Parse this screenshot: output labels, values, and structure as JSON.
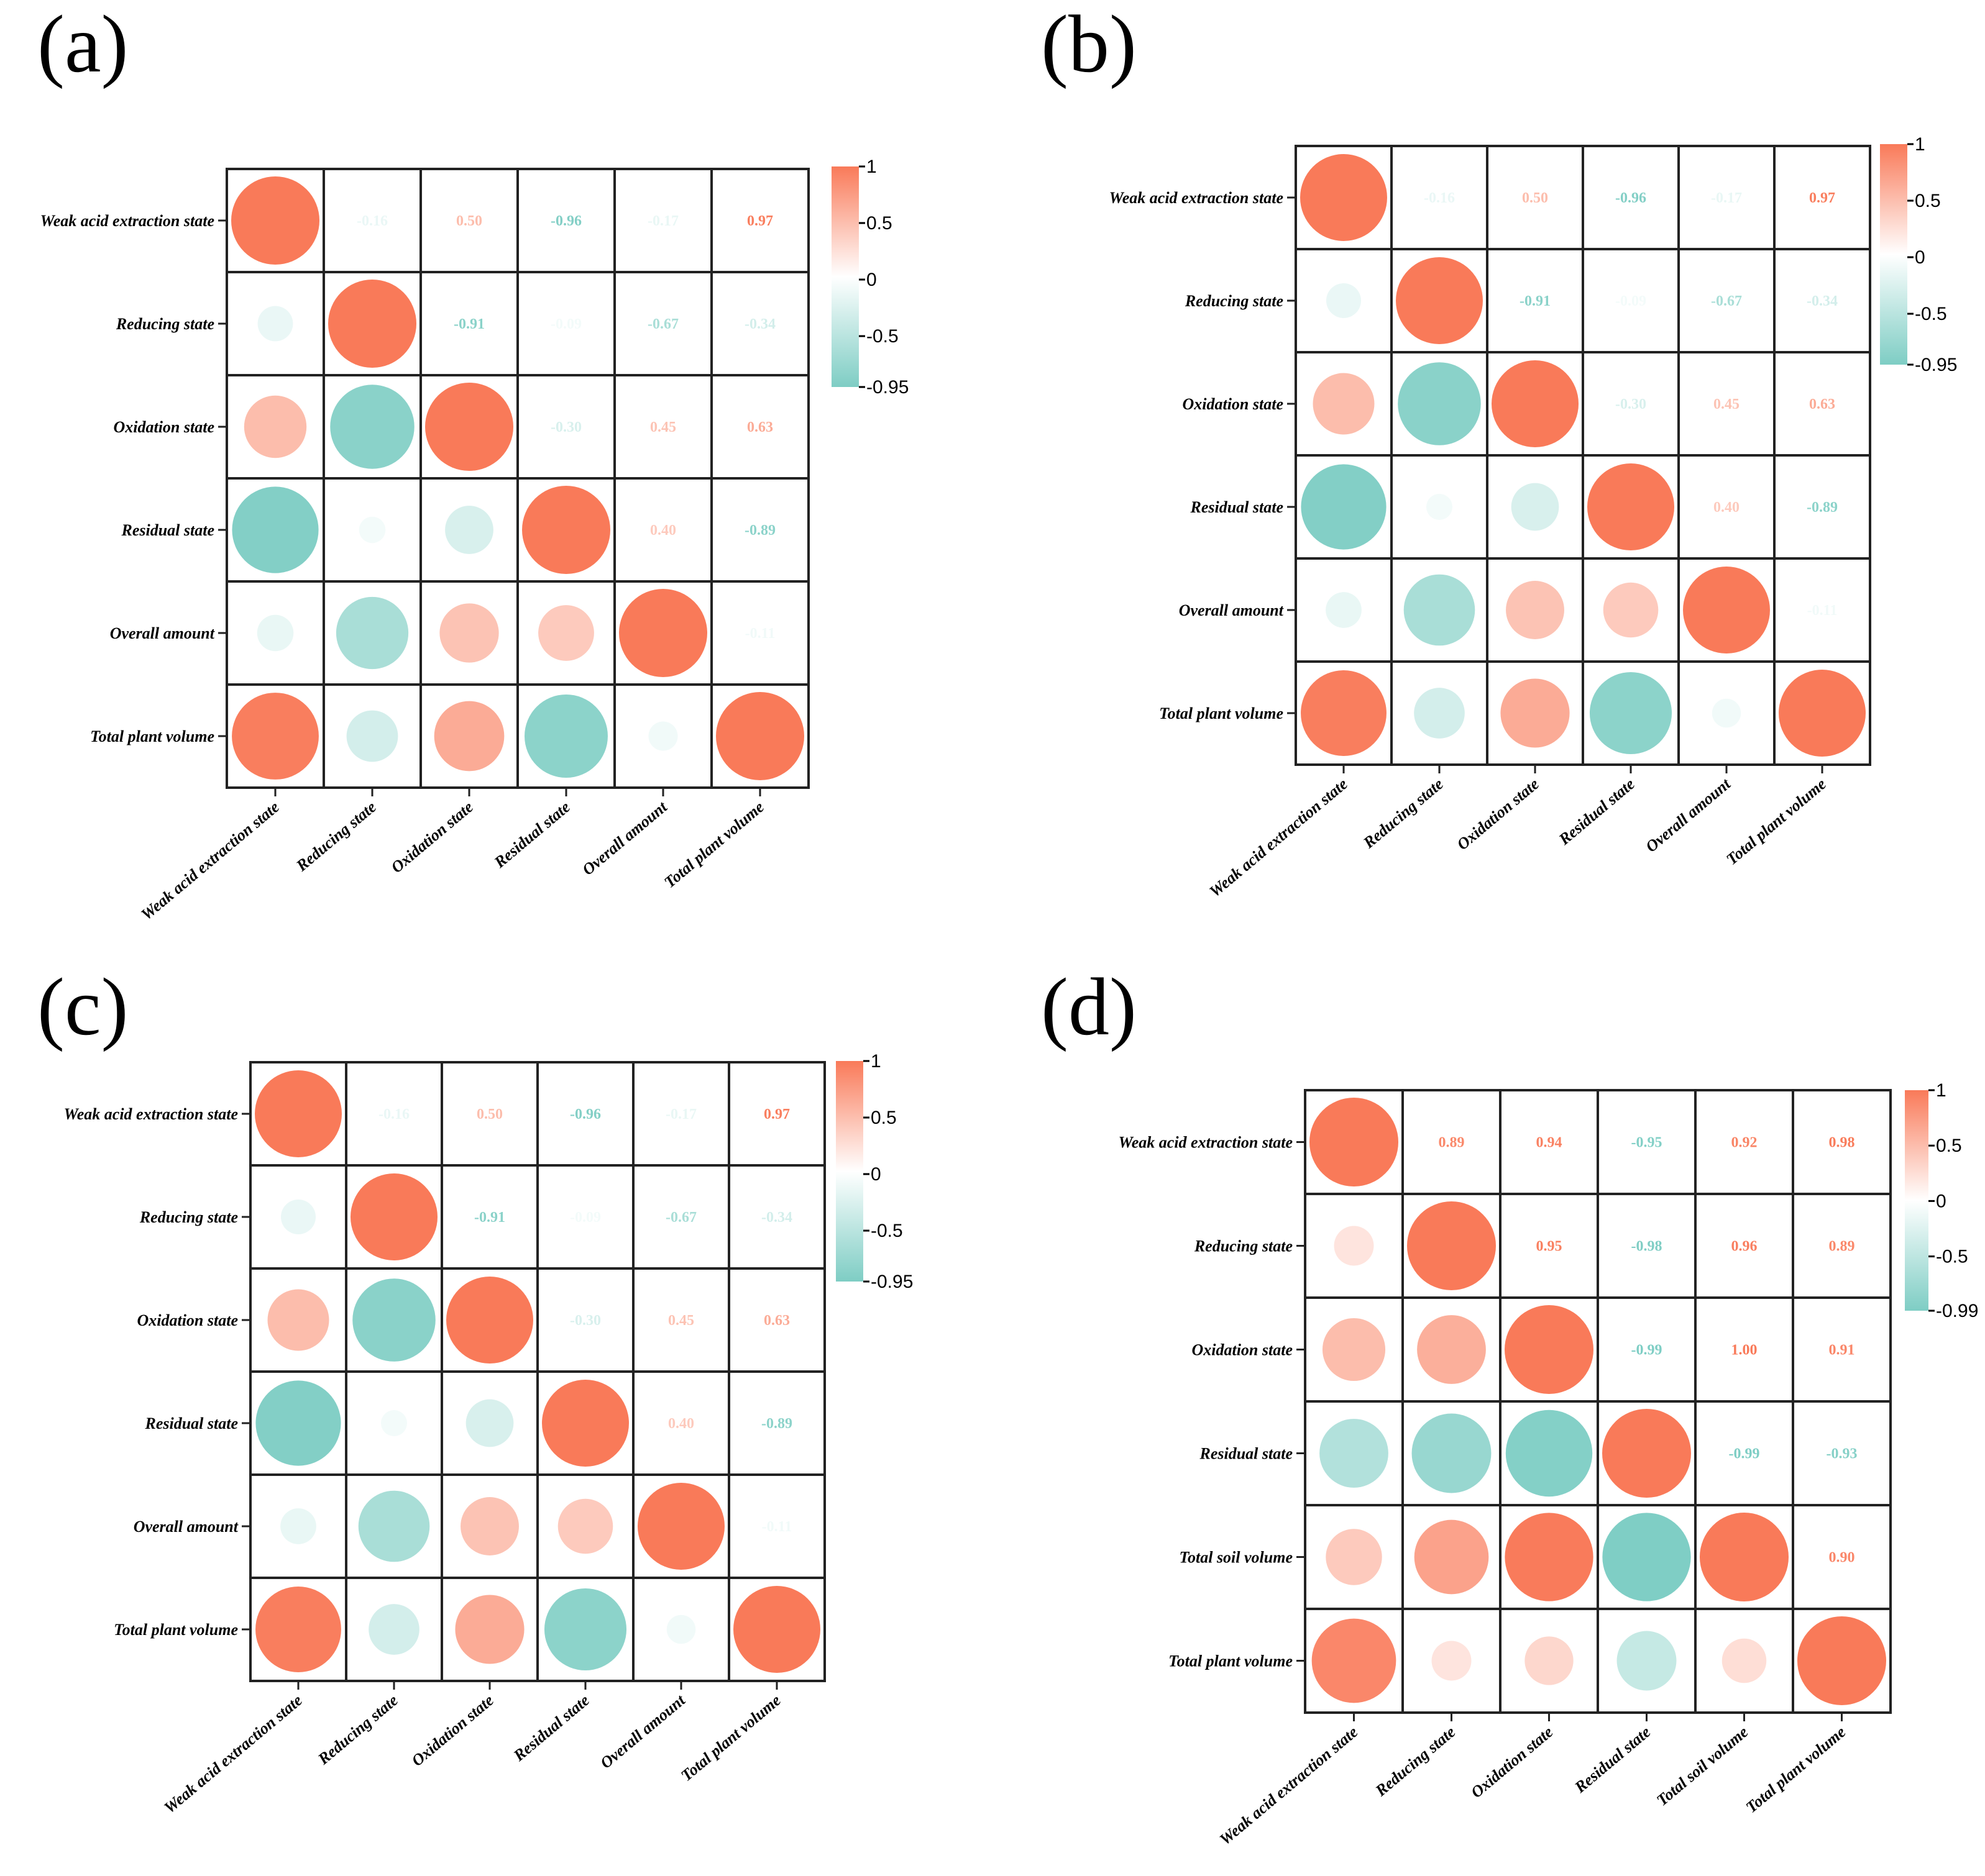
{
  "colors": {
    "positive": "#f97a59",
    "negative": "#7ecdc4",
    "neutral": "#ffffff",
    "grid": "#222222"
  },
  "chart_data": [
    {
      "id": "a",
      "panel_label": "(a)",
      "type": "correlogram",
      "rows": [
        "Weak acid extraction state",
        "Reducing state",
        "Oxidation state",
        "Residual state",
        "Overall amount",
        "Total plant volume"
      ],
      "cols": [
        "Weak acid extraction state",
        "Reducing state",
        "Oxidation state",
        "Residual state",
        "Overall amount",
        "Total plant volume"
      ],
      "matrix": [
        [
          1.0,
          -0.16,
          0.5,
          -0.96,
          -0.17,
          0.97
        ],
        [
          -0.16,
          1.0,
          -0.91,
          -0.09,
          -0.67,
          -0.34
        ],
        [
          0.5,
          -0.91,
          1.0,
          -0.3,
          0.45,
          0.63
        ],
        [
          -0.96,
          -0.09,
          -0.3,
          1.0,
          0.4,
          -0.89
        ],
        [
          -0.17,
          -0.67,
          0.45,
          0.4,
          1.0,
          -0.11
        ],
        [
          0.97,
          -0.34,
          0.63,
          -0.89,
          -0.11,
          1.0
        ]
      ],
      "labels": [
        [
          "",
          "-0.16",
          "0.50",
          "-0.96",
          "-0.17",
          "0.97"
        ],
        [
          "",
          "",
          "-0.91",
          "-0.09",
          "-0.67",
          "-0.34"
        ],
        [
          "",
          "",
          "",
          "-0.30",
          "0.45",
          "0.63"
        ],
        [
          "",
          "",
          "",
          "",
          "0.40",
          "-0.89"
        ],
        [
          "",
          "",
          "",
          "",
          "",
          "-0.11"
        ],
        [
          "",
          "",
          "",
          "",
          "",
          ""
        ]
      ],
      "colorbar": {
        "ticks": [
          "1",
          "0.5",
          "0",
          "-0.5",
          "-0.95"
        ],
        "range": [
          -0.95,
          1
        ]
      }
    },
    {
      "id": "b",
      "panel_label": "(b)",
      "type": "correlogram",
      "rows": [
        "Weak acid extraction state",
        "Reducing state",
        "Oxidation state",
        "Residual state",
        "Overall amount",
        "Total plant volume"
      ],
      "cols": [
        "Weak acid extraction state",
        "Reducing state",
        "Oxidation state",
        "Residual state",
        "Overall amount",
        "Total plant volume"
      ],
      "matrix": [
        [
          1.0,
          -0.16,
          0.5,
          -0.96,
          -0.17,
          0.97
        ],
        [
          -0.16,
          1.0,
          -0.91,
          -0.09,
          -0.67,
          -0.34
        ],
        [
          0.5,
          -0.91,
          1.0,
          -0.3,
          0.45,
          0.63
        ],
        [
          -0.96,
          -0.09,
          -0.3,
          1.0,
          0.4,
          -0.89
        ],
        [
          -0.17,
          -0.67,
          0.45,
          0.4,
          1.0,
          -0.11
        ],
        [
          0.97,
          -0.34,
          0.63,
          -0.89,
          -0.11,
          1.0
        ]
      ],
      "labels": [
        [
          "",
          "-0.16",
          "0.50",
          "-0.96",
          "-0.17",
          "0.97"
        ],
        [
          "",
          "",
          "-0.91",
          "-0.09",
          "-0.67",
          "-0.34"
        ],
        [
          "",
          "",
          "",
          "-0.30",
          "0.45",
          "0.63"
        ],
        [
          "",
          "",
          "",
          "",
          "0.40",
          "-0.89"
        ],
        [
          "",
          "",
          "",
          "",
          "",
          "-0.11"
        ],
        [
          "",
          "",
          "",
          "",
          "",
          ""
        ]
      ],
      "colorbar": {
        "ticks": [
          "1",
          "0.5",
          "0",
          "-0.5",
          "-0.95"
        ],
        "range": [
          -0.95,
          1
        ]
      }
    },
    {
      "id": "c",
      "panel_label": "(c)",
      "type": "correlogram",
      "rows": [
        "Weak acid extraction state",
        "Reducing state",
        "Oxidation state",
        "Residual state",
        "Overall amount",
        "Total plant volume"
      ],
      "cols": [
        "Weak acid extraction state",
        "Reducing state",
        "Oxidation state",
        "Residual state",
        "Overall amount",
        "Total plant volume"
      ],
      "matrix": [
        [
          1.0,
          -0.16,
          0.5,
          -0.96,
          -0.17,
          0.97
        ],
        [
          -0.16,
          1.0,
          -0.91,
          -0.09,
          -0.67,
          -0.34
        ],
        [
          0.5,
          -0.91,
          1.0,
          -0.3,
          0.45,
          0.63
        ],
        [
          -0.96,
          -0.09,
          -0.3,
          1.0,
          0.4,
          -0.89
        ],
        [
          -0.17,
          -0.67,
          0.45,
          0.4,
          1.0,
          -0.11
        ],
        [
          0.97,
          -0.34,
          0.63,
          -0.89,
          -0.11,
          1.0
        ]
      ],
      "labels": [
        [
          "",
          "-0.16",
          "0.50",
          "-0.96",
          "-0.17",
          "0.97"
        ],
        [
          "",
          "",
          "-0.91",
          "-0.09",
          "-0.67",
          "-0.34"
        ],
        [
          "",
          "",
          "",
          "-0.30",
          "0.45",
          "0.63"
        ],
        [
          "",
          "",
          "",
          "",
          "0.40",
          "-0.89"
        ],
        [
          "",
          "",
          "",
          "",
          "",
          "-0.11"
        ],
        [
          "",
          "",
          "",
          "",
          "",
          ""
        ]
      ],
      "colorbar": {
        "ticks": [
          "1",
          "0.5",
          "0",
          "-0.5",
          "-0.95"
        ],
        "range": [
          -0.95,
          1
        ]
      }
    },
    {
      "id": "d",
      "panel_label": "(d)",
      "type": "correlogram",
      "rows": [
        "Weak acid extraction state",
        "Reducing state",
        "Oxidation state",
        "Residual state",
        "Total soil volume",
        "Total plant volume"
      ],
      "cols": [
        "Weak acid extraction state",
        "Reducing state",
        "Oxidation state",
        "Residual state",
        "Total soil volume",
        "Total plant volume"
      ],
      "matrix": [
        [
          1.0,
          0.89,
          0.94,
          -0.95,
          0.92,
          0.98
        ],
        [
          0.2,
          1.0,
          0.95,
          -0.98,
          0.96,
          0.89
        ],
        [
          0.5,
          0.6,
          1.0,
          -0.99,
          1.0,
          0.91
        ],
        [
          -0.6,
          -0.8,
          -0.95,
          1.0,
          -0.99,
          -0.93
        ],
        [
          0.4,
          0.7,
          0.99,
          -0.99,
          1.0,
          0.9
        ],
        [
          0.9,
          0.2,
          0.3,
          -0.45,
          0.25,
          1.0
        ]
      ],
      "labels": [
        [
          "",
          "0.89",
          "0.94",
          "-0.95",
          "0.92",
          "0.98"
        ],
        [
          "",
          "",
          "0.95",
          "-0.98",
          "0.96",
          "0.89"
        ],
        [
          "",
          "",
          "",
          "-0.99",
          "1.00",
          "0.91"
        ],
        [
          "",
          "",
          "",
          "",
          "-0.99",
          "-0.93"
        ],
        [
          "",
          "",
          "",
          "",
          "",
          "0.90"
        ],
        [
          "",
          "",
          "",
          "",
          "",
          ""
        ]
      ],
      "colorbar": {
        "ticks": [
          "1",
          "0.5",
          "0",
          "-0.5",
          "-0.99"
        ],
        "range": [
          -0.99,
          1
        ]
      }
    }
  ]
}
